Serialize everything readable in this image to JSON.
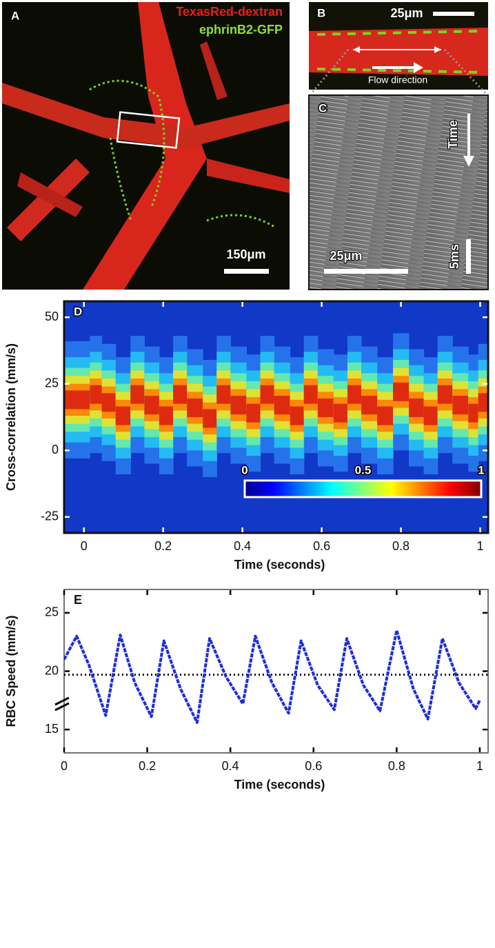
{
  "images": {
    "A": {
      "label": "A",
      "legend": [
        "TexasRed-dextran",
        "ephrinB2-GFP"
      ],
      "scale": "150μm"
    },
    "B": {
      "label": "B",
      "scale": "25μm",
      "annotation": "Flow direction"
    },
    "C": {
      "label": "C",
      "axis": "Time",
      "scale_x": "25μm",
      "scale_t": "5ms"
    }
  },
  "chart_data": [
    {
      "type": "heatmap",
      "label": "D",
      "xlabel": "Time (seconds)",
      "ylabel": "Cross-correlation (mm/s)",
      "xlim": [
        -0.05,
        1.02
      ],
      "ylim": [
        -31,
        56
      ],
      "xticks": [
        0,
        0.2,
        0.4,
        0.6,
        0.8,
        1
      ],
      "yticks": [
        -25,
        0,
        25,
        50
      ],
      "x": [
        0.0,
        0.03,
        0.06,
        0.1,
        0.135,
        0.17,
        0.21,
        0.24,
        0.28,
        0.32,
        0.35,
        0.39,
        0.43,
        0.46,
        0.5,
        0.54,
        0.57,
        0.61,
        0.65,
        0.68,
        0.72,
        0.76,
        0.8,
        0.84,
        0.875,
        0.91,
        0.95,
        0.99,
        1.0
      ],
      "values": [
        19,
        21,
        18,
        13,
        21,
        17,
        13,
        21,
        16,
        12,
        21,
        17,
        14,
        21,
        17,
        13,
        21,
        16,
        14,
        21,
        17,
        13,
        22,
        16,
        13,
        21,
        17,
        14,
        18
      ],
      "colorbar": {
        "lim": [
          0,
          1
        ],
        "ticks": [
          0,
          0.5,
          1
        ]
      }
    },
    {
      "type": "line",
      "label": "E",
      "xlabel": "Time (seconds)",
      "ylabel": "RBC Speed (mm/s)",
      "xlim": [
        0,
        1.02
      ],
      "ylim": [
        13,
        27
      ],
      "xticks": [
        0,
        0.2,
        0.4,
        0.6,
        0.8,
        1
      ],
      "yticks": [
        15,
        20,
        25
      ],
      "x": [
        0.0,
        0.03,
        0.06,
        0.1,
        0.135,
        0.17,
        0.21,
        0.24,
        0.28,
        0.32,
        0.35,
        0.39,
        0.43,
        0.46,
        0.5,
        0.54,
        0.57,
        0.61,
        0.65,
        0.68,
        0.72,
        0.76,
        0.8,
        0.84,
        0.875,
        0.91,
        0.95,
        0.99,
        1.0
      ],
      "series": [
        {
          "color": "#1f2fd6",
          "values": [
            21.0,
            23.0,
            20.5,
            16.2,
            23.1,
            19.0,
            16.1,
            22.6,
            18.5,
            15.6,
            22.8,
            19.5,
            17.2,
            23.0,
            19.0,
            16.4,
            22.6,
            18.8,
            16.7,
            22.8,
            18.8,
            16.6,
            23.5,
            18.5,
            15.9,
            22.8,
            19.0,
            16.8,
            17.5
          ]
        }
      ],
      "reference": 19.7
    }
  ]
}
